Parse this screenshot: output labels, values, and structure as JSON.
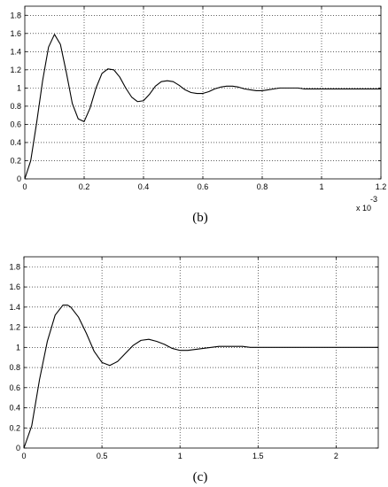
{
  "chart_data": [
    {
      "type": "line",
      "caption": "(b)",
      "x_exponent_label": "x 10",
      "x_exponent_power": "-3",
      "xlim": [
        0,
        1.2
      ],
      "ylim": [
        0,
        1.9
      ],
      "x_ticks": [
        0,
        0.2,
        0.4,
        0.6,
        0.8,
        1,
        1.2
      ],
      "y_ticks": [
        0,
        0.2,
        0.4,
        0.6,
        0.8,
        1,
        1.2,
        1.4,
        1.6,
        1.8
      ],
      "x_tick_labels": [
        "0",
        "0.2",
        "0.4",
        "0.6",
        "0.8",
        "1",
        "1.2"
      ],
      "y_tick_labels": [
        "0",
        "0.2",
        "0.4",
        "0.6",
        "0.8",
        "1",
        "1.2",
        "1.4",
        "1.6",
        "1.8"
      ],
      "grid": true,
      "series": [
        {
          "x": [
            0,
            0.02,
            0.04,
            0.06,
            0.08,
            0.1,
            0.12,
            0.14,
            0.16,
            0.18,
            0.2,
            0.22,
            0.24,
            0.26,
            0.28,
            0.3,
            0.32,
            0.34,
            0.36,
            0.38,
            0.4,
            0.42,
            0.44,
            0.46,
            0.48,
            0.5,
            0.52,
            0.54,
            0.56,
            0.58,
            0.6,
            0.62,
            0.64,
            0.66,
            0.68,
            0.7,
            0.72,
            0.74,
            0.76,
            0.78,
            0.8,
            0.82,
            0.84,
            0.86,
            0.88,
            0.9,
            0.92,
            0.94,
            0.96,
            0.98,
            1,
            1.02,
            1.04,
            1.06,
            1.08,
            1.1,
            1.12,
            1.14,
            1.16,
            1.18,
            1.2
          ],
          "y": [
            0,
            0.2,
            0.62,
            1.08,
            1.45,
            1.59,
            1.48,
            1.17,
            0.83,
            0.66,
            0.63,
            0.78,
            1.0,
            1.16,
            1.21,
            1.2,
            1.12,
            1.0,
            0.9,
            0.85,
            0.86,
            0.93,
            1.02,
            1.07,
            1.08,
            1.07,
            1.03,
            0.98,
            0.95,
            0.94,
            0.94,
            0.96,
            0.99,
            1.01,
            1.02,
            1.02,
            1.01,
            0.99,
            0.98,
            0.97,
            0.97,
            0.98,
            0.99,
            1.0,
            1.0,
            1.0,
            1.0,
            0.99,
            0.99,
            0.99,
            0.99,
            0.99,
            0.99,
            0.99,
            0.99,
            0.99,
            0.99,
            0.99,
            0.99,
            0.99,
            0.99
          ]
        }
      ]
    },
    {
      "type": "line",
      "caption": "(c)",
      "xlim": [
        0,
        2.27
      ],
      "ylim": [
        0,
        1.9
      ],
      "x_ticks": [
        0,
        0.5,
        1,
        1.5,
        2
      ],
      "y_ticks": [
        0,
        0.2,
        0.4,
        0.6,
        0.8,
        1,
        1.2,
        1.4,
        1.6,
        1.8
      ],
      "x_tick_labels": [
        "0",
        "0.5",
        "1",
        "1.5",
        "2"
      ],
      "y_tick_labels": [
        "0",
        "0.2",
        "0.4",
        "0.6",
        "0.8",
        "1",
        "1.2",
        "1.4",
        "1.6",
        "1.8"
      ],
      "grid": true,
      "series": [
        {
          "x": [
            0,
            0.05,
            0.1,
            0.15,
            0.2,
            0.25,
            0.28,
            0.3,
            0.35,
            0.4,
            0.45,
            0.5,
            0.55,
            0.6,
            0.65,
            0.7,
            0.75,
            0.8,
            0.85,
            0.9,
            0.95,
            1.0,
            1.05,
            1.1,
            1.15,
            1.2,
            1.25,
            1.3,
            1.35,
            1.4,
            1.45,
            1.5,
            1.6,
            1.7,
            1.8,
            1.9,
            2.0,
            2.1,
            2.2,
            2.27
          ],
          "y": [
            0,
            0.22,
            0.68,
            1.06,
            1.32,
            1.42,
            1.42,
            1.4,
            1.3,
            1.14,
            0.96,
            0.85,
            0.82,
            0.86,
            0.94,
            1.02,
            1.07,
            1.08,
            1.06,
            1.03,
            0.99,
            0.97,
            0.97,
            0.98,
            0.99,
            1.0,
            1.01,
            1.01,
            1.01,
            1.01,
            1.0,
            1.0,
            1.0,
            1.0,
            1.0,
            1.0,
            1.0,
            1.0,
            1.0,
            1.0
          ]
        }
      ]
    }
  ]
}
